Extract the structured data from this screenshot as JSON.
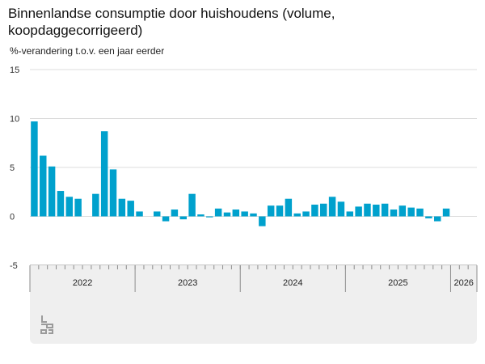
{
  "chart_data": {
    "type": "bar",
    "title": "Binnenlandse consumptie door huishoudens (volume, koopdaggecorrigeerd)",
    "ylabel": "%-verandering t.o.v. een jaar eerder",
    "ylim": [
      -5,
      15
    ],
    "yticks": [
      15,
      10,
      5,
      0,
      -5
    ],
    "grid": true,
    "bar_color": "#00a1cd",
    "x": [
      "2022-01",
      "2022-02",
      "2022-03",
      "2022-04",
      "2022-05",
      "2022-06",
      "2022-07",
      "2022-08",
      "2022-09",
      "2022-10",
      "2022-11",
      "2022-12",
      "2023-01",
      "2023-02",
      "2023-03",
      "2023-04",
      "2023-05",
      "2023-06",
      "2023-07",
      "2023-08",
      "2023-09",
      "2023-10",
      "2023-11",
      "2023-12",
      "2024-01",
      "2024-02",
      "2024-03",
      "2024-04",
      "2024-05",
      "2024-06",
      "2024-07",
      "2024-08",
      "2024-09",
      "2024-10",
      "2024-11",
      "2024-12",
      "2025-01",
      "2025-02",
      "2025-03",
      "2025-04",
      "2025-05",
      "2025-06",
      "2025-07",
      "2025-08",
      "2025-09",
      "2025-10",
      "2025-11",
      "2025-12",
      "2026-01",
      "2026-02",
      "2026-03"
    ],
    "values": [
      9.7,
      6.2,
      5.1,
      2.6,
      2.0,
      1.8,
      0.0,
      2.3,
      8.7,
      4.8,
      1.8,
      1.6,
      0.5,
      0.0,
      0.5,
      -0.5,
      0.7,
      -0.3,
      2.3,
      0.2,
      -0.1,
      0.8,
      0.4,
      0.7,
      0.5,
      0.3,
      -1.0,
      1.1,
      1.1,
      1.8,
      0.3,
      0.5,
      1.2,
      1.3,
      2.0,
      1.5,
      0.5,
      1.0,
      1.3,
      1.2,
      1.3,
      0.7,
      1.1,
      0.9,
      0.8,
      -0.2,
      -0.5,
      0.8,
      0.0,
      0.0,
      0.0
    ],
    "year_labels": [
      "2022",
      "2023",
      "2024",
      "2025",
      "2026"
    ]
  },
  "logo": {
    "name": "cbs-logo"
  }
}
